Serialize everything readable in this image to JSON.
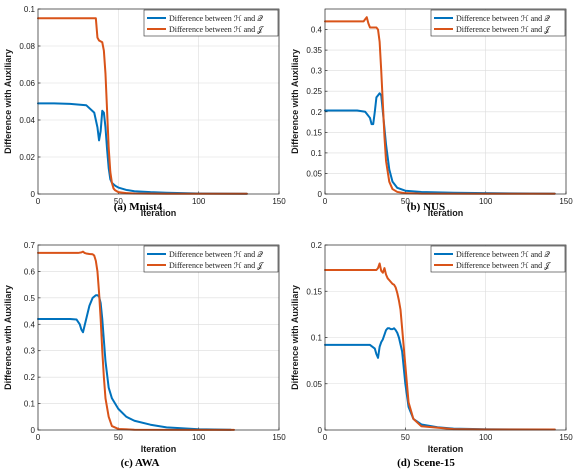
{
  "colors": {
    "series1": "#0072BD",
    "series2": "#D95319"
  },
  "chart_data": [
    {
      "type": "line",
      "caption": "(a) Mnist4",
      "xlabel": "Iteration",
      "ylabel": "Difference with Auxiliary",
      "xlim": [
        0,
        150
      ],
      "ylim": [
        0,
        0.1
      ],
      "xticks": [
        "0",
        "50",
        "100",
        "150"
      ],
      "yticks": [
        "0",
        "0.02",
        "0.04",
        "0.06",
        "0.08",
        "0.1"
      ],
      "ytick_values": [
        0,
        0.02,
        0.04,
        0.06,
        0.08,
        0.1
      ],
      "grid": true,
      "legend_position": "top-right",
      "series": [
        {
          "name": "Difference between ℋ and 𝒬",
          "x": [
            0,
            10,
            20,
            30,
            35,
            37,
            38,
            39,
            40,
            41,
            42,
            43,
            44,
            45,
            46,
            48,
            50,
            55,
            60,
            70,
            80,
            100,
            130
          ],
          "y": [
            0.049,
            0.049,
            0.0487,
            0.048,
            0.044,
            0.036,
            0.029,
            0.034,
            0.045,
            0.044,
            0.036,
            0.024,
            0.014,
            0.008,
            0.006,
            0.0045,
            0.0035,
            0.0022,
            0.0015,
            0.001,
            0.0007,
            0.0003,
            0.0001
          ]
        },
        {
          "name": "Difference between ℋ and 𝒥",
          "x": [
            0,
            10,
            20,
            30,
            36,
            37,
            38,
            39,
            40,
            41,
            42,
            43,
            44,
            45,
            46,
            47,
            48,
            50,
            55,
            60,
            80,
            100,
            130
          ],
          "y": [
            0.095,
            0.095,
            0.095,
            0.095,
            0.095,
            0.0845,
            0.083,
            0.0825,
            0.082,
            0.0775,
            0.065,
            0.045,
            0.025,
            0.012,
            0.006,
            0.003,
            0.002,
            0.001,
            0.0005,
            0.0003,
            0.0001,
            0.0001,
            0.0001
          ]
        }
      ]
    },
    {
      "type": "line",
      "caption": "(b) NUS",
      "xlabel": "Iteration",
      "ylabel": "Difference with Auxiliary",
      "xlim": [
        0,
        150
      ],
      "ylim": [
        0,
        0.45
      ],
      "xticks": [
        "0",
        "50",
        "100",
        "150"
      ],
      "yticks": [
        "0",
        "0.05",
        "0.1",
        "0.15",
        "0.2",
        "0.25",
        "0.3",
        "0.35",
        "0.4"
      ],
      "ytick_values": [
        0,
        0.05,
        0.1,
        0.15,
        0.2,
        0.25,
        0.3,
        0.35,
        0.4
      ],
      "grid": true,
      "legend_position": "top-right",
      "series": [
        {
          "name": "Difference between ℋ and 𝒬",
          "x": [
            0,
            10,
            20,
            25,
            28,
            29,
            30,
            31,
            32,
            33,
            34,
            35,
            36,
            38,
            40,
            42,
            45,
            50,
            60,
            80,
            100,
            143
          ],
          "y": [
            0.203,
            0.203,
            0.203,
            0.2,
            0.185,
            0.17,
            0.17,
            0.2,
            0.235,
            0.24,
            0.245,
            0.24,
            0.2,
            0.12,
            0.06,
            0.03,
            0.015,
            0.008,
            0.005,
            0.003,
            0.002,
            0.001
          ]
        },
        {
          "name": "Difference between ℋ and 𝒥",
          "x": [
            0,
            10,
            20,
            24,
            25,
            26,
            27,
            28,
            30,
            32,
            33,
            34,
            35,
            36,
            37,
            38,
            40,
            42,
            45,
            50,
            60,
            100,
            143
          ],
          "y": [
            0.42,
            0.42,
            0.42,
            0.42,
            0.425,
            0.43,
            0.415,
            0.405,
            0.405,
            0.405,
            0.4,
            0.37,
            0.3,
            0.22,
            0.14,
            0.08,
            0.03,
            0.012,
            0.005,
            0.002,
            0.001,
            0.0005,
            0.0005
          ]
        }
      ]
    },
    {
      "type": "line",
      "caption": "(c) AWA",
      "xlabel": "Iteration",
      "ylabel": "Difference with Auxiliary",
      "xlim": [
        0,
        150
      ],
      "ylim": [
        0,
        0.7
      ],
      "xticks": [
        "0",
        "50",
        "100",
        "150"
      ],
      "yticks": [
        "0",
        "0.1",
        "0.2",
        "0.3",
        "0.4",
        "0.5",
        "0.6",
        "0.7"
      ],
      "ytick_values": [
        0,
        0.1,
        0.2,
        0.3,
        0.4,
        0.5,
        0.6,
        0.7
      ],
      "grid": true,
      "legend_position": "top-right",
      "series": [
        {
          "name": "Difference between ℋ and 𝒬",
          "x": [
            0,
            10,
            20,
            24,
            26,
            27,
            28,
            30,
            32,
            34,
            36,
            37,
            38,
            39,
            40,
            41,
            42,
            44,
            46,
            50,
            55,
            60,
            70,
            80,
            100,
            120
          ],
          "y": [
            0.42,
            0.42,
            0.42,
            0.418,
            0.4,
            0.38,
            0.37,
            0.42,
            0.47,
            0.5,
            0.51,
            0.51,
            0.505,
            0.48,
            0.42,
            0.34,
            0.26,
            0.16,
            0.12,
            0.08,
            0.05,
            0.035,
            0.02,
            0.01,
            0.003,
            0.001
          ]
        },
        {
          "name": "Difference between ℋ and 𝒥",
          "x": [
            0,
            10,
            20,
            25,
            27,
            28,
            29,
            30,
            32,
            34,
            35,
            36,
            37,
            38,
            39,
            40,
            41,
            42,
            44,
            46,
            50,
            60,
            100,
            122
          ],
          "y": [
            0.67,
            0.67,
            0.67,
            0.67,
            0.672,
            0.675,
            0.67,
            0.668,
            0.666,
            0.665,
            0.66,
            0.64,
            0.6,
            0.52,
            0.42,
            0.3,
            0.2,
            0.12,
            0.05,
            0.015,
            0.004,
            0.001,
            0.0005,
            0.0005
          ]
        }
      ]
    },
    {
      "type": "line",
      "caption": "(d) Scene-15",
      "xlabel": "Iteration",
      "ylabel": "Difference with Auxiliary",
      "xlim": [
        0,
        150
      ],
      "ylim": [
        0,
        0.2
      ],
      "xticks": [
        "0",
        "50",
        "100",
        "150"
      ],
      "yticks": [
        "0",
        "0.05",
        "0.1",
        "0.15",
        "0.2"
      ],
      "ytick_values": [
        0,
        0.05,
        0.1,
        0.15,
        0.2
      ],
      "grid": true,
      "legend_position": "top-right",
      "series": [
        {
          "name": "Difference between ℋ and 𝒬",
          "x": [
            0,
            10,
            20,
            28,
            31,
            32,
            33,
            34,
            35,
            36,
            37,
            38,
            39,
            40,
            41,
            42,
            43,
            44,
            45,
            46,
            48,
            50,
            52,
            55,
            60,
            70,
            80,
            100,
            143
          ],
          "y": [
            0.092,
            0.092,
            0.092,
            0.092,
            0.088,
            0.082,
            0.078,
            0.09,
            0.095,
            0.098,
            0.103,
            0.108,
            0.11,
            0.11,
            0.109,
            0.109,
            0.11,
            0.108,
            0.105,
            0.1,
            0.085,
            0.05,
            0.025,
            0.012,
            0.006,
            0.003,
            0.0015,
            0.0008,
            0.0005
          ]
        },
        {
          "name": "Difference between ℋ and 𝒥",
          "x": [
            0,
            10,
            20,
            30,
            32,
            33,
            34,
            35,
            36,
            37,
            38,
            39,
            40,
            41,
            42,
            43,
            44,
            45,
            46,
            47,
            48,
            50,
            52,
            55,
            60,
            80,
            100,
            143
          ],
          "y": [
            0.173,
            0.173,
            0.173,
            0.173,
            0.173,
            0.175,
            0.18,
            0.172,
            0.17,
            0.175,
            0.168,
            0.164,
            0.162,
            0.16,
            0.158,
            0.157,
            0.154,
            0.148,
            0.14,
            0.13,
            0.11,
            0.07,
            0.03,
            0.012,
            0.004,
            0.001,
            0.0005,
            0.0005
          ]
        }
      ]
    }
  ]
}
